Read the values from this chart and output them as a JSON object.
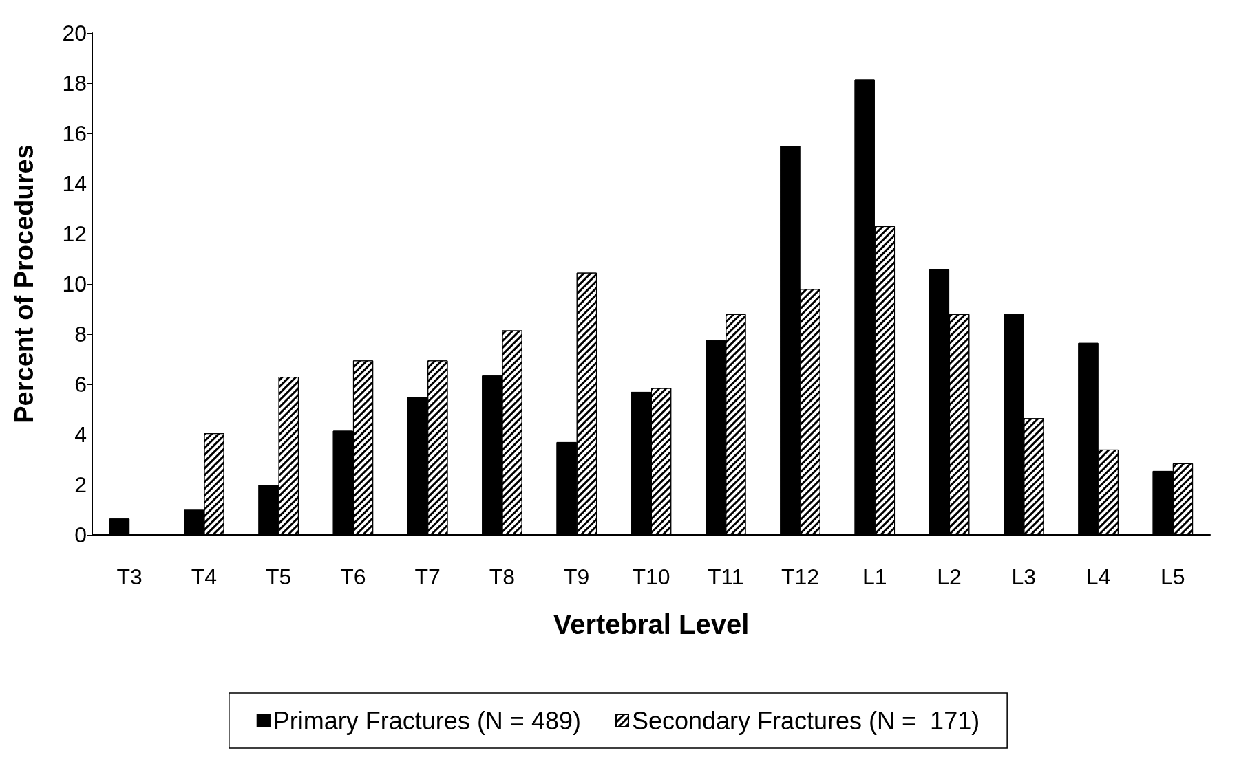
{
  "chart_data": {
    "type": "bar",
    "xlabel": "Vertebral Level",
    "ylabel": "Percent of Procedures",
    "categories": [
      "T3",
      "T4",
      "T5",
      "T6",
      "T7",
      "T8",
      "T9",
      "T10",
      "T11",
      "T12",
      "L1",
      "L2",
      "L3",
      "L4",
      "L5"
    ],
    "series": [
      {
        "name": "Primary Fractures (N = 489)",
        "color": "#000000",
        "values": [
          0.65,
          1.0,
          2.0,
          4.15,
          5.5,
          6.35,
          3.7,
          5.7,
          7.75,
          15.5,
          18.15,
          10.6,
          8.8,
          7.65,
          2.55
        ]
      },
      {
        "name": "Secondary Fractures (N =  171)",
        "color": "#ffffff",
        "values": [
          null,
          4.05,
          6.3,
          6.95,
          6.95,
          8.15,
          10.45,
          5.85,
          8.8,
          9.8,
          12.3,
          8.8,
          4.65,
          3.4,
          2.85
        ]
      }
    ],
    "ylim": [
      0,
      20
    ],
    "yticks": [
      0,
      2,
      4,
      6,
      8,
      10,
      12,
      14,
      16,
      18,
      20
    ],
    "grid": false,
    "legend": "bottom"
  }
}
